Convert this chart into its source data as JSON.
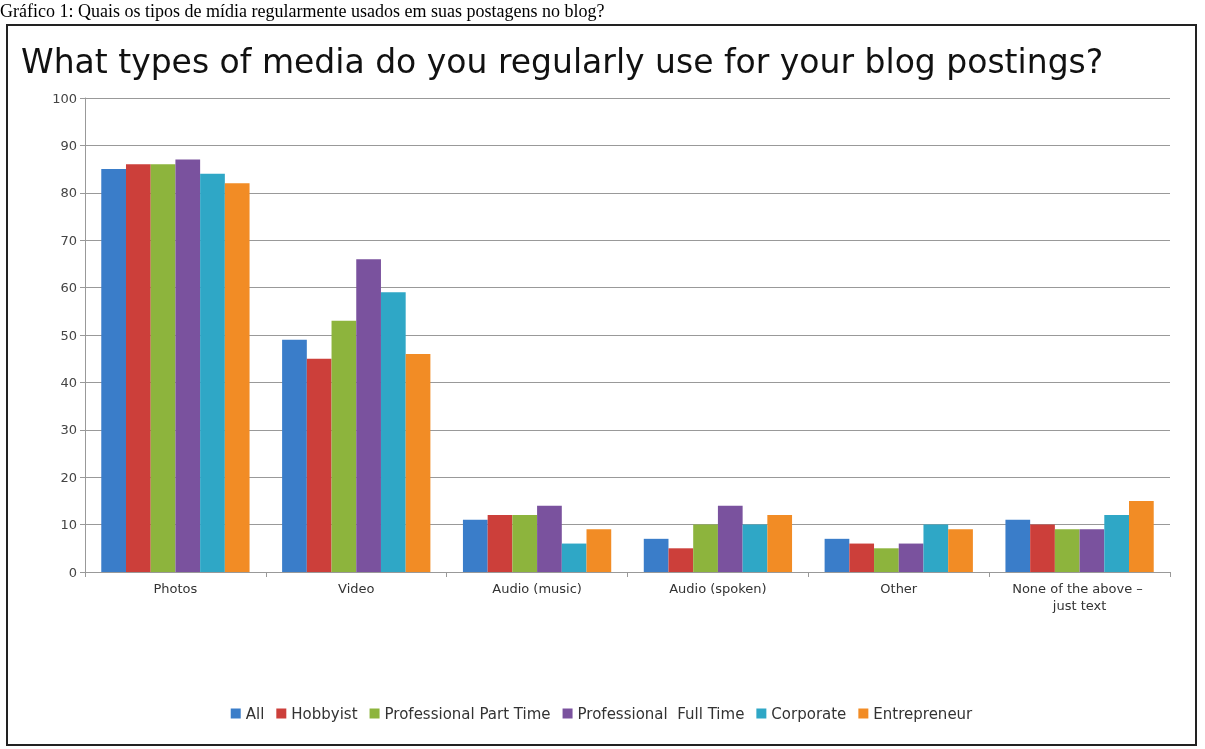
{
  "chart_data": {
    "type": "bar",
    "title": "What types of media do you regularly use for your blog postings?",
    "annotations": [
      "Gráfico 1: Quais os tipos de mídia regularmente usados em suas postagens no blog?"
    ],
    "categories": [
      "Photos",
      "Video",
      "Audio (music)",
      "Audio (spoken)",
      "Other",
      "None of the above – just text"
    ],
    "series": [
      {
        "name": "All",
        "color": "#3a7dc9",
        "values": [
          85,
          49,
          11,
          7,
          7,
          11
        ]
      },
      {
        "name": "Hobbyist",
        "color": "#cc3f3a",
        "values": [
          86,
          45,
          12,
          5,
          6,
          10
        ]
      },
      {
        "name": "Professional Part Time",
        "color": "#8db43d",
        "values": [
          86,
          53,
          12,
          10,
          5,
          9
        ]
      },
      {
        "name": "Professional  Full Time",
        "color": "#7a529e",
        "values": [
          87,
          66,
          14,
          14,
          6,
          9
        ]
      },
      {
        "name": "Corporate",
        "color": "#2fa7c6",
        "values": [
          84,
          59,
          6,
          10,
          10,
          12
        ]
      },
      {
        "name": "Entrepreneur",
        "color": "#f28c25",
        "values": [
          82,
          46,
          9,
          12,
          9,
          15
        ]
      }
    ],
    "ylim": [
      0,
      100
    ],
    "yticks": [
      0,
      10,
      20,
      30,
      40,
      50,
      60,
      70,
      80,
      90,
      100
    ],
    "grid": "y",
    "legend": "bottom"
  }
}
